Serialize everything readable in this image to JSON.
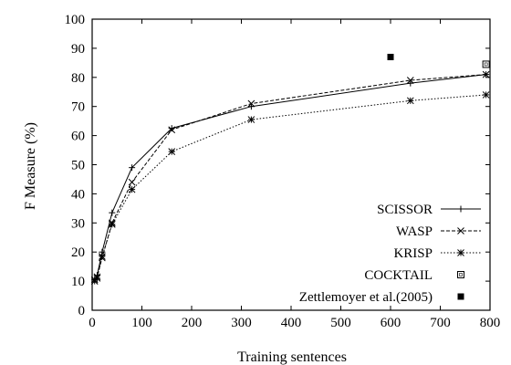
{
  "chart_data": {
    "type": "line",
    "title": "",
    "xlabel": "Training sentences",
    "ylabel": "F Measure (%)",
    "xlim": [
      0,
      800
    ],
    "ylim": [
      0,
      100
    ],
    "xticks": [
      0,
      100,
      200,
      300,
      400,
      500,
      600,
      700,
      800
    ],
    "yticks": [
      0,
      10,
      20,
      30,
      40,
      50,
      60,
      70,
      80,
      90,
      100
    ],
    "grid": false,
    "legend_position": "bottom-right",
    "series": [
      {
        "name": "SCISSOR",
        "line": "solid",
        "marker": "plus",
        "x": [
          5,
          10,
          20,
          40,
          80,
          160,
          320,
          640,
          792
        ],
        "y": [
          10.5,
          12,
          20,
          33.5,
          49,
          62.5,
          70,
          78,
          81
        ]
      },
      {
        "name": "WASP",
        "line": "dashed",
        "marker": "x",
        "x": [
          5,
          10,
          20,
          40,
          80,
          160,
          320,
          640,
          792
        ],
        "y": [
          10.5,
          11.5,
          18,
          30,
          44,
          62,
          71,
          79,
          81
        ]
      },
      {
        "name": "KRISP",
        "line": "dotted",
        "marker": "star",
        "x": [
          5,
          10,
          20,
          40,
          80,
          160,
          320,
          640,
          792
        ],
        "y": [
          10,
          11,
          18.5,
          29.5,
          41.5,
          54.5,
          65.5,
          72,
          74
        ]
      },
      {
        "name": "COCKTAIL",
        "line": "none",
        "marker": "open-square",
        "x": [
          792
        ],
        "y": [
          84.5
        ]
      },
      {
        "name": "Zettlemoyer et al.(2005)",
        "line": "none",
        "marker": "filled-square",
        "x": [
          600
        ],
        "y": [
          87
        ]
      }
    ]
  }
}
